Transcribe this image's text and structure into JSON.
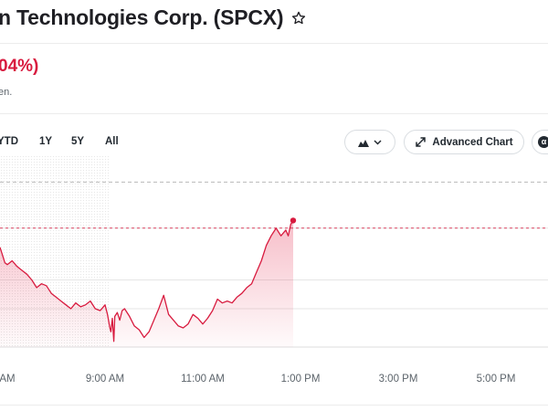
{
  "header": {
    "title": "n Technologies Corp. (SPCX)",
    "star_icon": "star-outline-icon"
  },
  "quote": {
    "change_text": "04%)",
    "market_status": "en."
  },
  "range_tabs": [
    {
      "label": "YTD"
    },
    {
      "label": "1Y"
    },
    {
      "label": "5Y"
    },
    {
      "label": "All"
    }
  ],
  "toolbar": {
    "chart_type_icon": "mountain-chart-icon",
    "advanced_chart_label": "Advanced Chart",
    "expand_icon": "expand-arrows-icon",
    "extra_icon_glyph": "α"
  },
  "colors": {
    "accent_red": "#d81b3f",
    "text_dark": "#1f1f24",
    "text_muted": "#5b636a"
  },
  "chart_data": {
    "type": "line",
    "title": "",
    "xlabel": "",
    "ylabel": "",
    "x_ticks": [
      "AM",
      "9:00 AM",
      "11:00 AM",
      "1:00 PM",
      "3:00 PM",
      "5:00 PM"
    ],
    "x_tick_hours": [
      7.0,
      9.0,
      11.0,
      13.0,
      15.0,
      17.0
    ],
    "ylim": [
      0,
      100
    ],
    "previous_close_reference": 62,
    "upper_reference": 86,
    "premarket_end_hour": 9.1,
    "series": [
      {
        "x": [
          6.85,
          6.9,
          6.95,
          7.0,
          7.1,
          7.2,
          7.3,
          7.4,
          7.5,
          7.6,
          7.7,
          7.8,
          7.9,
          8.0,
          8.1,
          8.2,
          8.3,
          8.4,
          8.5,
          8.6,
          8.7,
          8.8,
          8.9,
          9.0,
          9.05,
          9.1,
          9.12,
          9.15,
          9.18,
          9.2,
          9.25,
          9.3,
          9.35,
          9.4,
          9.5,
          9.6,
          9.7,
          9.8,
          9.9,
          10.0,
          10.1,
          10.2,
          10.3,
          10.4,
          10.5,
          10.6,
          10.7,
          10.8,
          10.9,
          11.0,
          11.1,
          11.2,
          11.3,
          11.4,
          11.5,
          11.6,
          11.7,
          11.8,
          11.9,
          12.0,
          12.1,
          12.2,
          12.3,
          12.4,
          12.5,
          12.6,
          12.7,
          12.75,
          12.8,
          12.85
        ],
        "y": [
          52,
          48,
          44,
          43,
          45,
          42,
          40,
          38,
          35,
          31,
          33,
          32,
          28,
          26,
          24,
          22,
          20,
          23,
          21,
          22,
          24,
          20,
          19,
          22,
          17,
          10,
          8,
          15,
          3,
          16,
          18,
          14,
          19,
          20,
          16,
          11,
          9,
          5,
          8,
          14,
          20,
          27,
          17,
          14,
          11,
          10,
          12,
          17,
          15,
          12,
          15,
          19,
          25,
          23,
          24,
          23,
          26,
          28,
          31,
          33,
          39,
          45,
          53,
          58,
          62,
          58,
          61,
          58,
          64,
          66
        ]
      }
    ],
    "grid": true
  }
}
